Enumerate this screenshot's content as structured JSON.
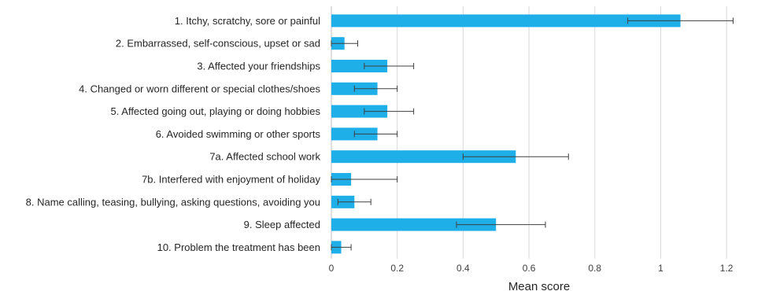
{
  "chart_data": {
    "type": "bar",
    "orientation": "horizontal",
    "categories": [
      "1. Itchy, scratchy, sore or painful",
      "2. Embarrassed, self-conscious, upset or sad",
      "3. Affected your friendships",
      "4. Changed or worn different or special clothes/shoes",
      "5. Affected going out, playing or doing hobbies",
      "6. Avoided swimming or other sports",
      "7a. Affected school work",
      "7b. Interfered with enjoyment of holiday",
      "8. Name calling, teasing, bullying, asking questions, avoiding you",
      "9. Sleep affected",
      "10. Problem the treatment has been"
    ],
    "values": [
      1.06,
      0.04,
      0.17,
      0.14,
      0.17,
      0.14,
      0.56,
      0.06,
      0.07,
      0.5,
      0.03
    ],
    "error_low": [
      0.9,
      0.0,
      0.1,
      0.07,
      0.1,
      0.07,
      0.4,
      0.0,
      0.02,
      0.38,
      0.0
    ],
    "error_high": [
      1.22,
      0.08,
      0.25,
      0.2,
      0.25,
      0.2,
      0.72,
      0.2,
      0.12,
      0.65,
      0.06
    ],
    "bar_color": "#1EAEE8",
    "xlabel": "Mean score",
    "ylabel": "",
    "title": "",
    "xlim": [
      0,
      1.3
    ],
    "xticks": [
      0,
      0.2,
      0.4,
      0.6,
      0.8,
      1,
      1.2
    ],
    "xtick_labels": [
      "0",
      "0.2",
      "0.4",
      "0.6",
      "0.8",
      "1",
      "1.2"
    ],
    "grid": "vertical",
    "legend": "none"
  }
}
